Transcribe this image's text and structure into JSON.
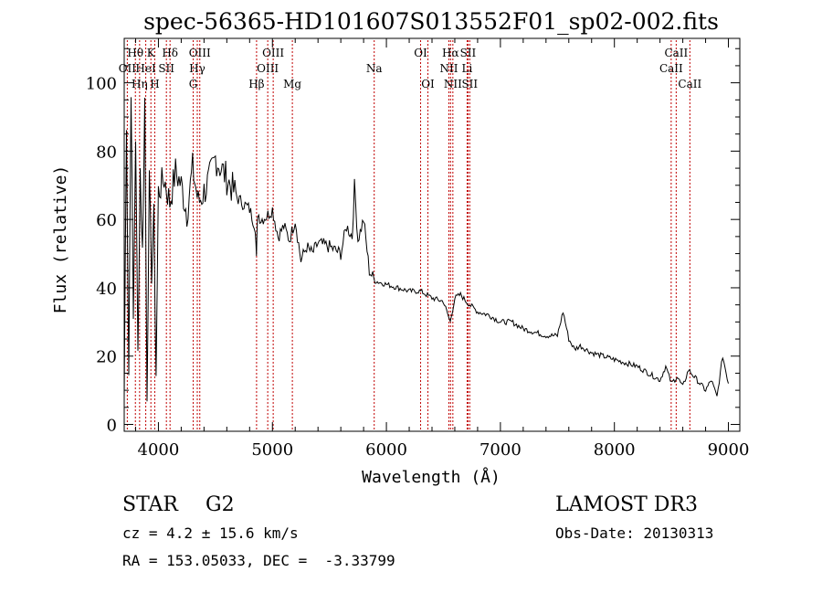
{
  "chart_data": {
    "type": "line",
    "title": "spec-56365-HD101607S013552F01_sp02-002.fits",
    "xlabel": "Wavelength (Å)",
    "ylabel": "Flux (relative)",
    "xlim": [
      3700,
      9100
    ],
    "ylim": [
      -2,
      113
    ],
    "xticks": [
      4000,
      5000,
      6000,
      7000,
      8000,
      9000
    ],
    "yticks": [
      0,
      20,
      40,
      60,
      80,
      100
    ],
    "series": [
      {
        "name": "flux",
        "x": [
          3700,
          3720,
          3740,
          3760,
          3780,
          3800,
          3820,
          3840,
          3860,
          3880,
          3900,
          3920,
          3940,
          3960,
          3980,
          4000,
          4050,
          4100,
          4150,
          4200,
          4250,
          4300,
          4350,
          4400,
          4450,
          4500,
          4600,
          4700,
          4800,
          4850,
          4860,
          4870,
          4900,
          4950,
          5000,
          5050,
          5100,
          5150,
          5200,
          5250,
          5300,
          5350,
          5400,
          5500,
          5600,
          5650,
          5700,
          5720,
          5750,
          5800,
          5850,
          5900,
          6000,
          6100,
          6200,
          6300,
          6400,
          6500,
          6560,
          6600,
          6650,
          6700,
          6800,
          6900,
          7000,
          7100,
          7200,
          7300,
          7400,
          7500,
          7550,
          7600,
          7650,
          7700,
          7800,
          7900,
          8000,
          8100,
          8200,
          8300,
          8400,
          8450,
          8500,
          8550,
          8600,
          8650,
          8700,
          8750,
          8800,
          8850,
          8900,
          8950,
          9000
        ],
        "y": [
          8,
          90,
          15,
          100,
          30,
          85,
          20,
          75,
          50,
          95,
          10,
          70,
          45,
          60,
          15,
          68,
          72,
          65,
          74,
          70,
          62,
          75,
          65,
          68,
          72,
          78,
          72,
          66,
          63,
          58,
          48,
          62,
          60,
          61,
          63,
          55,
          58,
          54,
          60,
          48,
          52,
          50,
          53,
          52,
          50,
          58,
          55,
          70,
          54,
          60,
          45,
          42,
          41,
          40,
          39,
          39,
          37,
          36,
          30,
          37,
          38,
          36,
          33,
          32,
          30,
          30,
          28,
          27,
          26,
          26,
          33,
          25,
          22,
          23,
          21,
          20,
          19,
          18,
          17,
          15,
          13,
          17,
          12,
          14,
          11,
          16,
          14,
          12,
          10,
          13,
          8,
          20,
          12
        ]
      }
    ],
    "lines": [
      {
        "name": "OII",
        "wave": 3727,
        "label_row": 1
      },
      {
        "name": "Hθ",
        "wave": 3798,
        "label_row": 0
      },
      {
        "name": "Hη",
        "wave": 3835,
        "label_row": 2
      },
      {
        "name": "HeI",
        "wave": 3889,
        "label_row": 1
      },
      {
        "name": "K",
        "wave": 3934,
        "label_row": 0
      },
      {
        "name": "H",
        "wave": 3968,
        "label_row": 2
      },
      {
        "name": "SII",
        "wave": 4070,
        "label_row": 1
      },
      {
        "name": "Hδ",
        "wave": 4102,
        "label_row": 0
      },
      {
        "name": "G",
        "wave": 4305,
        "label_row": 2
      },
      {
        "name": "Hγ",
        "wave": 4341,
        "label_row": 1
      },
      {
        "name": "OIII",
        "wave": 4363,
        "label_row": 0
      },
      {
        "name": "Hβ",
        "wave": 4861,
        "label_row": 2
      },
      {
        "name": "OIII",
        "wave": 4959,
        "label_row": 1
      },
      {
        "name": "OIII",
        "wave": 5007,
        "label_row": 0
      },
      {
        "name": "Mg",
        "wave": 5175,
        "label_row": 2
      },
      {
        "name": "Na",
        "wave": 5893,
        "label_row": 1
      },
      {
        "name": "OI",
        "wave": 6300,
        "label_row": 0
      },
      {
        "name": "OI",
        "wave": 6364,
        "label_row": 2
      },
      {
        "name": "NII",
        "wave": 6548,
        "label_row": 1
      },
      {
        "name": "Hα",
        "wave": 6563,
        "label_row": 0
      },
      {
        "name": "NII",
        "wave": 6583,
        "label_row": 2
      },
      {
        "name": "Li",
        "wave": 6708,
        "label_row": 1
      },
      {
        "name": "SII",
        "wave": 6716,
        "label_row": 0
      },
      {
        "name": "SII",
        "wave": 6731,
        "label_row": 2
      },
      {
        "name": "CaII",
        "wave": 8498,
        "label_row": 1
      },
      {
        "name": "CaII",
        "wave": 8542,
        "label_row": 0
      },
      {
        "name": "CaII",
        "wave": 8662,
        "label_row": 2
      }
    ],
    "colors": {
      "axis": "#000000",
      "line": "#000000",
      "marker": "#c00000"
    }
  },
  "footer": {
    "class_label": "STAR",
    "subclass": "G2",
    "survey": "LAMOST DR3",
    "redshift": "cz = 4.2 ± 15.6 km/s",
    "obs_date": "Obs-Date: 20130313",
    "coords": "RA = 153.05033, DEC =  -3.33799"
  }
}
